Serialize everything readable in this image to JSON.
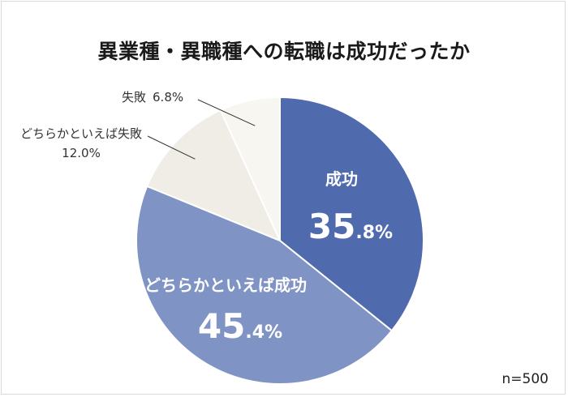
{
  "chart_data": {
    "type": "pie",
    "title": "異業種・異職種への転職は成功だったか",
    "note": "n=500",
    "slices": [
      {
        "label": "成功",
        "value": 35.8,
        "int_part": "35",
        "dec_part": ".8%",
        "color": "#4f6aad"
      },
      {
        "label": "どちらかといえば成功",
        "value": 45.4,
        "int_part": "45",
        "dec_part": ".4%",
        "color": "#7f93c4"
      },
      {
        "label": "どちらかといえば失敗",
        "value": 12.0,
        "value_text": "12.0%",
        "color": "#efede6"
      },
      {
        "label": "失敗",
        "value": 6.8,
        "value_text": "6.8%",
        "color": "#f7f6f1"
      }
    ]
  }
}
